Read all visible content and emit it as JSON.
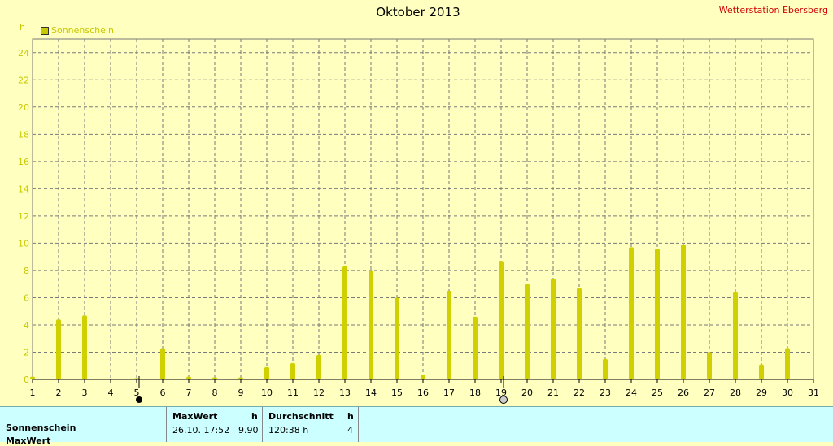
{
  "title": "Oktober 2013",
  "station": "Wetterstation Ebersberg",
  "unit": "h",
  "legend": "Sonnenschein",
  "colors": {
    "bar": "#d0d000",
    "axis_text": "#c8c800",
    "grid": "#7a7a7a",
    "background": "#ffffc0"
  },
  "chart_data": {
    "type": "bar",
    "title": "Oktober 2013",
    "ylabel": "h",
    "ylim": [
      0,
      25
    ],
    "yticks": [
      0,
      2,
      4,
      6,
      8,
      10,
      12,
      14,
      16,
      18,
      20,
      22,
      24
    ],
    "grid": true,
    "legend_position": "top-left",
    "categories": [
      "1",
      "2",
      "3",
      "4",
      "5",
      "6",
      "7",
      "8",
      "9",
      "10",
      "11",
      "12",
      "13",
      "14",
      "15",
      "16",
      "17",
      "18",
      "19",
      "20",
      "21",
      "22",
      "23",
      "24",
      "25",
      "26",
      "27",
      "28",
      "29",
      "30",
      "31"
    ],
    "series": [
      {
        "name": "Sonnenschein",
        "values": [
          0.2,
          4.4,
          4.7,
          0.05,
          0.1,
          2.3,
          0.2,
          0.15,
          0.15,
          0.9,
          1.2,
          1.8,
          8.3,
          8.0,
          6.0,
          0.35,
          6.5,
          4.6,
          8.7,
          7.0,
          7.4,
          6.7,
          1.5,
          9.7,
          9.6,
          9.9,
          2.0,
          6.4,
          1.1,
          2.3,
          0
        ]
      }
    ],
    "markers": [
      {
        "x": 5,
        "symbol": "filled-circle"
      },
      {
        "x": 19,
        "symbol": "open-circle"
      }
    ]
  },
  "table": {
    "row_label": "Sonnenschein",
    "max_header": "MaxWert",
    "max_unit": "h",
    "max_time": "26.10.  17:52",
    "max_value": "9.90",
    "avg_header": "Durchschnitt",
    "avg_unit": "h",
    "avg_value": "120:38 h",
    "avg_days": "4",
    "cut_label": "MaxWert"
  }
}
